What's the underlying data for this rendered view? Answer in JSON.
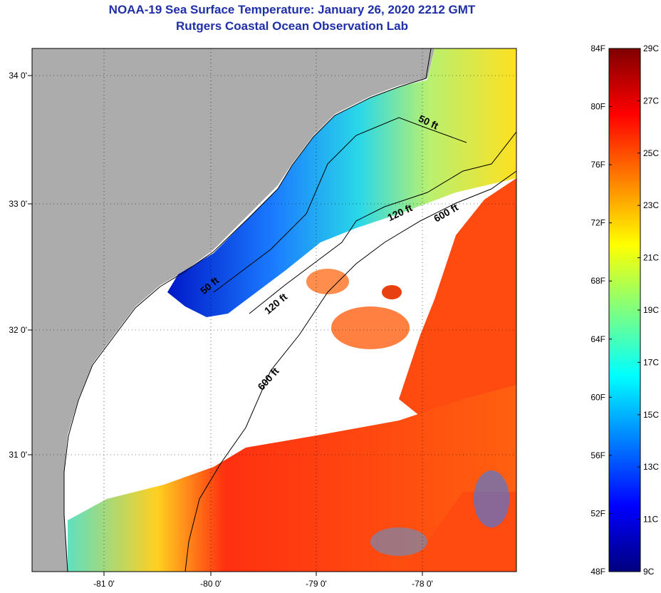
{
  "title": {
    "line1": "NOAA-19 Sea Surface Temperature:  January 26, 2020 2212 GMT",
    "line2": "Rutgers Coastal Ocean Observation Lab"
  },
  "map": {
    "lat_ticks": [
      "34 0'",
      "33 0'",
      "32 0'",
      "31 0'"
    ],
    "lon_ticks": [
      "-81 0'",
      "-80 0'",
      "-79 0'",
      "-78 0'"
    ],
    "contour_labels": [
      "50 ft",
      "120 ft",
      "600 ft",
      "50 ft",
      "120 ft",
      "600 ft"
    ],
    "colors": {
      "land": "#acacac",
      "cloud": "#ffffff"
    }
  },
  "colorbar": {
    "fahrenheit": [
      "84F",
      "80F",
      "76F",
      "72F",
      "68F",
      "64F",
      "60F",
      "56F",
      "52F",
      "48F"
    ],
    "celsius": [
      "29C",
      "27C",
      "25C",
      "23C",
      "21C",
      "19C",
      "17C",
      "15C",
      "13C",
      "11C",
      "9C"
    ],
    "gradient": [
      "#00007f",
      "#0000ff",
      "#007fff",
      "#00ffff",
      "#7fff7f",
      "#ffff00",
      "#ff7f00",
      "#ff0000",
      "#7f0000"
    ]
  }
}
